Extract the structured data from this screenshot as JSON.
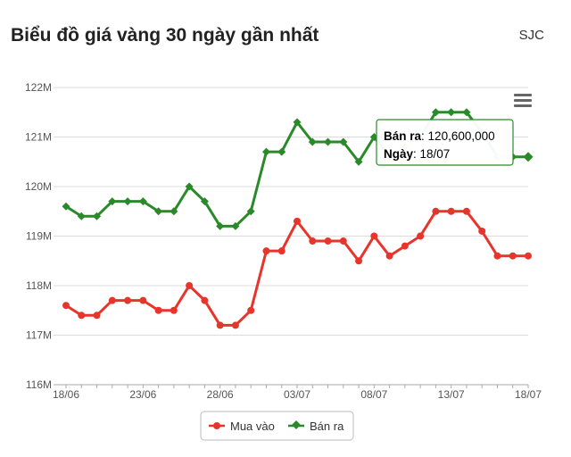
{
  "header": {
    "title": "Biểu đồ giá vàng 30 ngày gần nhất",
    "source": "SJC"
  },
  "menu_icon": "hamburger-menu-icon",
  "tooltip": {
    "label1": "Bán ra",
    "value1": "120,600,000",
    "label2": "Ngày",
    "value2": "18/07"
  },
  "colors": {
    "buy": "#e8352b",
    "sell": "#2a8a2a",
    "grid": "#dcdcdc",
    "axis_text": "#555555"
  },
  "chart_data": {
    "type": "line",
    "title": "Biểu đồ giá vàng 30 ngày gần nhất",
    "xlabel": "",
    "ylabel": "",
    "ylim": [
      116,
      122
    ],
    "y_ticks": [
      116,
      117,
      118,
      119,
      120,
      121,
      122
    ],
    "y_tick_labels": [
      "116M",
      "117M",
      "118M",
      "119M",
      "120M",
      "121M",
      "122M"
    ],
    "x_tick_labels": [
      "18/06",
      "23/06",
      "28/06",
      "03/07",
      "08/07",
      "13/07",
      "18/07"
    ],
    "grid": true,
    "legend_position": "bottom-center",
    "series": [
      {
        "name": "Mua vào",
        "color": "#e8352b",
        "marker": "circle",
        "values": [
          117.6,
          117.4,
          117.4,
          117.7,
          117.7,
          117.7,
          117.5,
          117.5,
          118.0,
          117.7,
          117.2,
          117.2,
          117.5,
          118.7,
          118.7,
          119.3,
          118.9,
          118.9,
          118.9,
          118.5,
          119.0,
          118.6,
          118.8,
          119.0,
          119.5,
          119.5,
          119.5,
          119.1,
          118.6,
          118.6,
          118.6
        ]
      },
      {
        "name": "Bán ra",
        "color": "#2a8a2a",
        "marker": "diamond",
        "values": [
          119.6,
          119.4,
          119.4,
          119.7,
          119.7,
          119.7,
          119.5,
          119.5,
          120.0,
          119.7,
          119.2,
          119.2,
          119.5,
          120.7,
          120.7,
          121.3,
          120.9,
          120.9,
          120.9,
          120.5,
          121.0,
          120.6,
          120.8,
          121.0,
          121.5,
          121.5,
          121.5,
          121.1,
          120.6,
          120.6,
          120.6
        ]
      }
    ]
  }
}
